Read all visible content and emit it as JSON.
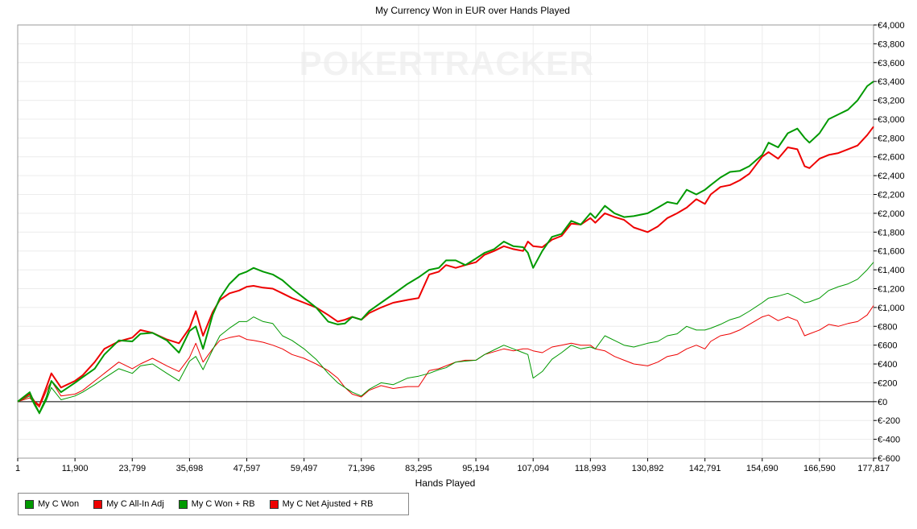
{
  "watermark": "POKERTRACKER",
  "chart_data": {
    "type": "line",
    "title": "My Currency Won in EUR over Hands Played",
    "xlabel": "Hands Played",
    "ylabel": "",
    "xlim": [
      1,
      177817
    ],
    "ylim": [
      -600,
      4000
    ],
    "x_ticks": [
      "1",
      "11,900",
      "23,799",
      "35,698",
      "47,597",
      "59,497",
      "71,396",
      "83,295",
      "95,194",
      "107,094",
      "118,993",
      "130,892",
      "142,791",
      "154,690",
      "166,590",
      "177,817"
    ],
    "x_tick_values": [
      1,
      11900,
      23799,
      35698,
      47597,
      59497,
      71396,
      83295,
      95194,
      107094,
      118993,
      130892,
      142791,
      154690,
      166590,
      177817
    ],
    "y_ticks": [
      "€4,000",
      "€3,800",
      "€3,600",
      "€3,400",
      "€3,200",
      "€3,000",
      "€2,800",
      "€2,600",
      "€2,400",
      "€2,200",
      "€2,000",
      "€1,800",
      "€1,600",
      "€1,400",
      "€1,200",
      "€1,000",
      "€800",
      "€600",
      "€400",
      "€200",
      "€0",
      "€-200",
      "€-400",
      "€-600"
    ],
    "y_tick_values": [
      4000,
      3800,
      3600,
      3400,
      3200,
      3000,
      2800,
      2600,
      2400,
      2200,
      2000,
      1800,
      1600,
      1400,
      1200,
      1000,
      800,
      600,
      400,
      200,
      0,
      -200,
      -400,
      -600
    ],
    "grid": true,
    "legend_position": "bottom-left",
    "series": [
      {
        "name": "My C Won",
        "color": "#009900",
        "width": 2,
        "x": [
          1,
          2500,
          3500,
          4500,
          6000,
          7000,
          9000,
          11900,
          13500,
          16000,
          18000,
          21000,
          23799,
          25500,
          28000,
          31000,
          33500,
          35698,
          37000,
          38500,
          40500,
          42000,
          44000,
          46000,
          47597,
          49000,
          51000,
          53000,
          55000,
          57000,
          59497,
          62000,
          64500,
          66500,
          68000,
          69500,
          71396,
          73000,
          75500,
          78000,
          81000,
          83295,
          85500,
          87500,
          89000,
          91000,
          93000,
          95194,
          97000,
          99000,
          101000,
          103000,
          105000,
          106000,
          107094,
          109000,
          111000,
          113000,
          115000,
          117000,
          118993,
          120000,
          122000,
          124000,
          126000,
          128000,
          130892,
          133000,
          135000,
          137000,
          139000,
          141000,
          142791,
          144000,
          146000,
          148000,
          150000,
          152000,
          154690,
          156000,
          158000,
          160000,
          162000,
          163500,
          164500,
          166590,
          168500,
          170500,
          172500,
          174500,
          176500,
          177817
        ],
        "y": [
          0,
          100,
          -20,
          -120,
          50,
          220,
          100,
          200,
          260,
          350,
          500,
          650,
          640,
          720,
          730,
          650,
          520,
          750,
          800,
          560,
          920,
          1100,
          1250,
          1350,
          1380,
          1420,
          1380,
          1350,
          1290,
          1200,
          1100,
          1000,
          850,
          820,
          830,
          900,
          870,
          960,
          1050,
          1140,
          1250,
          1320,
          1400,
          1420,
          1500,
          1500,
          1450,
          1520,
          1580,
          1620,
          1700,
          1650,
          1640,
          1580,
          1420,
          1600,
          1750,
          1780,
          1920,
          1880,
          2000,
          1950,
          2080,
          2000,
          1960,
          1970,
          2000,
          2060,
          2120,
          2100,
          2250,
          2200,
          2250,
          2300,
          2380,
          2440,
          2450,
          2500,
          2620,
          2750,
          2700,
          2850,
          2900,
          2800,
          2750,
          2850,
          3000,
          3050,
          3100,
          3200,
          3350,
          3400
        ]
      },
      {
        "name": "My C All-In Adj",
        "color": "#ee0000",
        "width": 2,
        "x": [
          1,
          2500,
          3500,
          4500,
          6000,
          7000,
          9000,
          11900,
          13500,
          16000,
          18000,
          21000,
          23799,
          25500,
          28000,
          31000,
          33500,
          35698,
          37000,
          38500,
          40500,
          42000,
          44000,
          46000,
          47597,
          49000,
          51000,
          53000,
          55000,
          57000,
          59497,
          62000,
          64500,
          66500,
          68000,
          69500,
          71396,
          73000,
          75500,
          78000,
          81000,
          83295,
          85500,
          87500,
          89000,
          91000,
          93000,
          95194,
          97000,
          99000,
          101000,
          103000,
          105000,
          106000,
          107094,
          109000,
          111000,
          113000,
          115000,
          117000,
          118993,
          120000,
          122000,
          124000,
          126000,
          128000,
          130892,
          133000,
          135000,
          137000,
          139000,
          141000,
          142791,
          144000,
          146000,
          148000,
          150000,
          152000,
          154690,
          156000,
          158000,
          160000,
          162000,
          163500,
          164500,
          166590,
          168500,
          170500,
          172500,
          174500,
          176500,
          177817
        ],
        "y": [
          0,
          80,
          0,
          -40,
          160,
          300,
          150,
          220,
          280,
          420,
          560,
          640,
          680,
          760,
          730,
          660,
          620,
          780,
          960,
          700,
          950,
          1080,
          1150,
          1180,
          1220,
          1230,
          1210,
          1200,
          1150,
          1100,
          1050,
          1000,
          920,
          850,
          870,
          900,
          870,
          940,
          1000,
          1050,
          1080,
          1100,
          1350,
          1380,
          1450,
          1420,
          1450,
          1480,
          1560,
          1600,
          1650,
          1620,
          1600,
          1700,
          1650,
          1640,
          1720,
          1760,
          1890,
          1880,
          1950,
          1900,
          2000,
          1960,
          1930,
          1850,
          1800,
          1860,
          1950,
          2000,
          2060,
          2150,
          2100,
          2200,
          2280,
          2300,
          2350,
          2420,
          2600,
          2650,
          2580,
          2700,
          2680,
          2500,
          2480,
          2580,
          2620,
          2640,
          2680,
          2720,
          2830,
          2920
        ]
      },
      {
        "name": "My C Won + RB",
        "color": "#009900",
        "width": 1,
        "x": [
          1,
          2500,
          3500,
          4500,
          6000,
          7000,
          9000,
          11900,
          13500,
          16000,
          18000,
          21000,
          23799,
          25500,
          28000,
          31000,
          33500,
          35698,
          37000,
          38500,
          40500,
          42000,
          44000,
          46000,
          47597,
          49000,
          51000,
          53000,
          55000,
          57000,
          59497,
          62000,
          64500,
          66500,
          68000,
          69500,
          71396,
          73000,
          75500,
          78000,
          81000,
          83295,
          85500,
          87500,
          89000,
          91000,
          93000,
          95194,
          97000,
          99000,
          101000,
          103000,
          105000,
          106000,
          107094,
          109000,
          111000,
          113000,
          115000,
          117000,
          118993,
          120000,
          122000,
          124000,
          126000,
          128000,
          130892,
          133000,
          135000,
          137000,
          139000,
          141000,
          142791,
          144000,
          146000,
          148000,
          150000,
          152000,
          154690,
          156000,
          158000,
          160000,
          162000,
          163500,
          164500,
          166590,
          168500,
          170500,
          172500,
          174500,
          176500,
          177817
        ],
        "y": [
          0,
          60,
          -40,
          -130,
          20,
          150,
          20,
          60,
          100,
          180,
          250,
          350,
          300,
          380,
          400,
          300,
          220,
          430,
          480,
          340,
          550,
          700,
          780,
          850,
          850,
          900,
          850,
          830,
          700,
          650,
          560,
          450,
          300,
          200,
          150,
          100,
          60,
          130,
          200,
          180,
          250,
          270,
          300,
          340,
          360,
          420,
          430,
          440,
          500,
          550,
          600,
          560,
          520,
          500,
          250,
          320,
          450,
          520,
          600,
          560,
          580,
          560,
          700,
          650,
          600,
          580,
          620,
          640,
          700,
          720,
          800,
          760,
          760,
          780,
          820,
          870,
          900,
          960,
          1050,
          1100,
          1120,
          1150,
          1100,
          1050,
          1060,
          1100,
          1180,
          1220,
          1250,
          1300,
          1400,
          1480
        ]
      },
      {
        "name": "My C Net Ajusted + RB",
        "color": "#ee0000",
        "width": 1,
        "x": [
          1,
          2500,
          3500,
          4500,
          6000,
          7000,
          9000,
          11900,
          13500,
          16000,
          18000,
          21000,
          23799,
          25500,
          28000,
          31000,
          33500,
          35698,
          37000,
          38500,
          40500,
          42000,
          44000,
          46000,
          47597,
          49000,
          51000,
          53000,
          55000,
          57000,
          59497,
          62000,
          64500,
          66500,
          68000,
          69500,
          71396,
          73000,
          75500,
          78000,
          81000,
          83295,
          85500,
          87500,
          89000,
          91000,
          93000,
          95194,
          97000,
          99000,
          101000,
          103000,
          105000,
          106000,
          107094,
          109000,
          111000,
          113000,
          115000,
          117000,
          118993,
          120000,
          122000,
          124000,
          126000,
          128000,
          130892,
          133000,
          135000,
          137000,
          139000,
          141000,
          142791,
          144000,
          146000,
          148000,
          150000,
          152000,
          154690,
          156000,
          158000,
          160000,
          162000,
          163500,
          164500,
          166590,
          168500,
          170500,
          172500,
          174500,
          176500,
          177817
        ],
        "y": [
          0,
          40,
          -10,
          -60,
          120,
          220,
          60,
          80,
          120,
          220,
          300,
          420,
          350,
          400,
          460,
          380,
          320,
          470,
          620,
          420,
          560,
          650,
          680,
          700,
          660,
          650,
          630,
          600,
          560,
          500,
          460,
          400,
          330,
          250,
          150,
          80,
          50,
          120,
          170,
          140,
          160,
          160,
          330,
          350,
          380,
          420,
          440,
          440,
          500,
          530,
          560,
          540,
          560,
          560,
          540,
          520,
          580,
          600,
          620,
          600,
          600,
          560,
          540,
          480,
          440,
          400,
          380,
          420,
          480,
          500,
          560,
          600,
          560,
          640,
          700,
          720,
          760,
          820,
          900,
          920,
          860,
          900,
          860,
          700,
          720,
          760,
          820,
          800,
          830,
          850,
          920,
          1020
        ]
      }
    ]
  }
}
